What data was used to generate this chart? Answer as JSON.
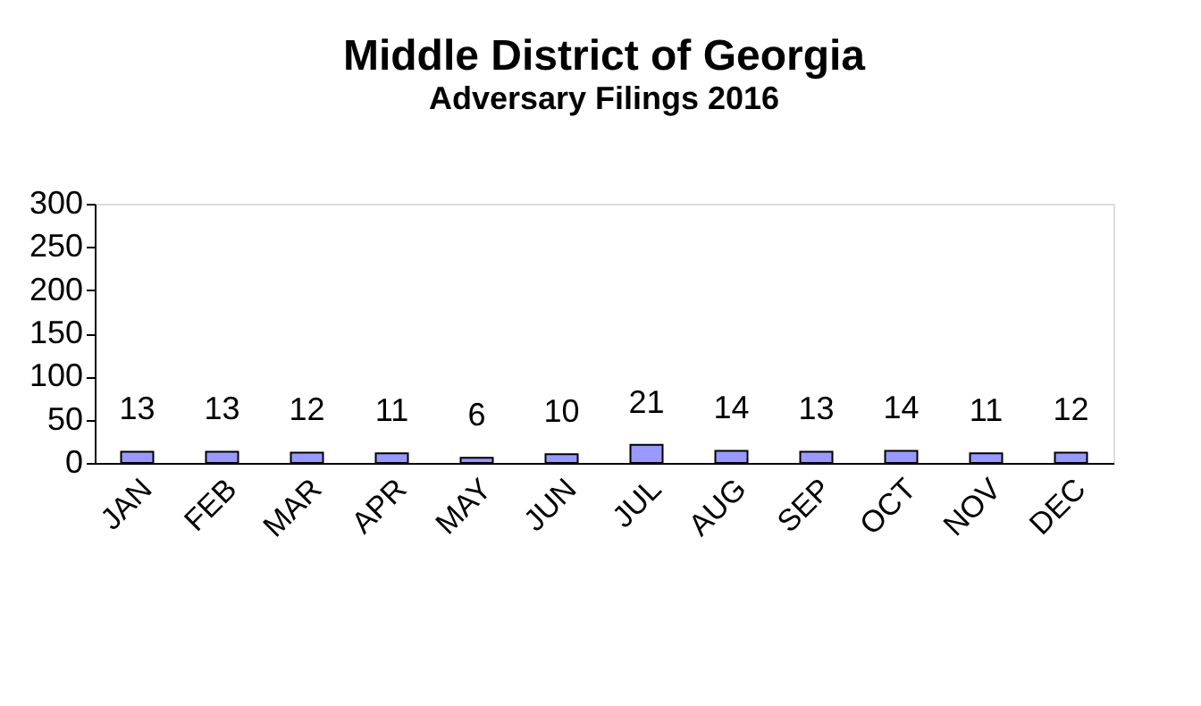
{
  "chart_data": {
    "type": "bar",
    "title": "Middle District of Georgia",
    "subtitle": "Adversary  Filings 2016",
    "categories": [
      "JAN",
      "FEB",
      "MAR",
      "APR",
      "MAY",
      "JUN",
      "JUL",
      "AUG",
      "SEP",
      "OCT",
      "NOV",
      "DEC"
    ],
    "values": [
      13,
      13,
      12,
      11,
      6,
      10,
      21,
      14,
      13,
      14,
      11,
      12
    ],
    "color": "#9999ff",
    "ylim": [
      0,
      300
    ],
    "yticks": [
      0,
      50,
      100,
      150,
      200,
      250,
      300
    ],
    "grid": false,
    "data_labels": true
  }
}
